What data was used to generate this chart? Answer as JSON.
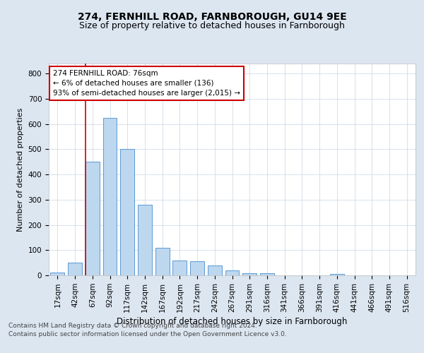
{
  "title_line1": "274, FERNHILL ROAD, FARNBOROUGH, GU14 9EE",
  "title_line2": "Size of property relative to detached houses in Farnborough",
  "xlabel": "Distribution of detached houses by size in Farnborough",
  "ylabel": "Number of detached properties",
  "categories": [
    "17sqm",
    "42sqm",
    "67sqm",
    "92sqm",
    "117sqm",
    "142sqm",
    "167sqm",
    "192sqm",
    "217sqm",
    "242sqm",
    "267sqm",
    "291sqm",
    "316sqm",
    "341sqm",
    "366sqm",
    "391sqm",
    "416sqm",
    "441sqm",
    "466sqm",
    "491sqm",
    "516sqm"
  ],
  "values": [
    10,
    50,
    450,
    625,
    500,
    280,
    110,
    60,
    55,
    40,
    20,
    8,
    8,
    0,
    0,
    0,
    5,
    0,
    0,
    0,
    0
  ],
  "bar_color": "#bdd7ee",
  "bar_edgecolor": "#5b9bd5",
  "vline_bar_index": 2,
  "annotation_text": "274 FERNHILL ROAD: 76sqm\n← 6% of detached houses are smaller (136)\n93% of semi-detached houses are larger (2,015) →",
  "annotation_box_color": "#ffffff",
  "annotation_border_color": "#cc0000",
  "ylim": [
    0,
    840
  ],
  "yticks": [
    0,
    100,
    200,
    300,
    400,
    500,
    600,
    700,
    800
  ],
  "background_color": "#dce6f1",
  "plot_background": "#ffffff",
  "footer_line1": "Contains HM Land Registry data © Crown copyright and database right 2024.",
  "footer_line2": "Contains public sector information licensed under the Open Government Licence v3.0.",
  "title1_fontsize": 10,
  "title2_fontsize": 9,
  "xlabel_fontsize": 8.5,
  "ylabel_fontsize": 8,
  "tick_fontsize": 7.5,
  "annotation_fontsize": 7.5,
  "footer_fontsize": 6.5
}
